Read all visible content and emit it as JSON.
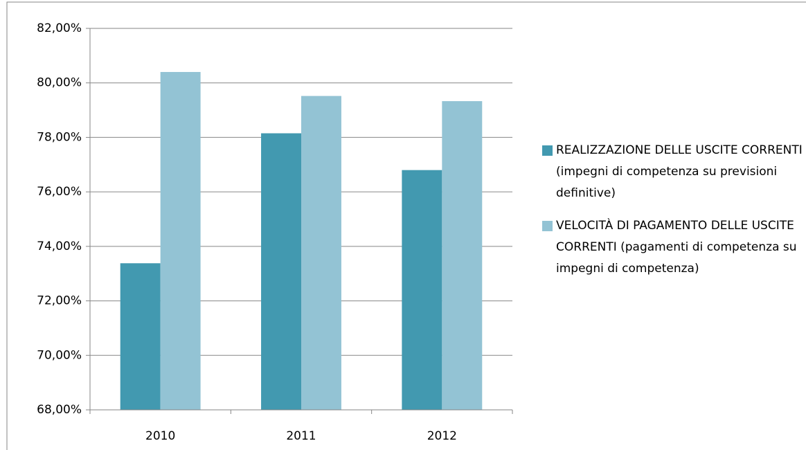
{
  "chart_data": {
    "type": "bar",
    "categories": [
      "2010",
      "2011",
      "2012"
    ],
    "series": [
      {
        "name": "REALIZZAZIONE DELLE USCITE CORRENTI\n (impegni di competenza su previsioni definitive)",
        "color": "#4299b0",
        "values": [
          73.38,
          78.15,
          76.8
        ]
      },
      {
        "name": "VELOCITÀ DI PAGAMENTO DELLE USCITE CORRENTI (pagamenti di competenza su impegni di competenza)",
        "color": "#93c3d4",
        "values": [
          80.4,
          79.52,
          79.33
        ]
      }
    ],
    "ylim": [
      68,
      82
    ],
    "yticks": [
      {
        "value": 68,
        "label": "68,00%"
      },
      {
        "value": 70,
        "label": "70,00%"
      },
      {
        "value": 72,
        "label": "72,00%"
      },
      {
        "value": 74,
        "label": "74,00%"
      },
      {
        "value": 76,
        "label": "76,00%"
      },
      {
        "value": 78,
        "label": "78,00%"
      },
      {
        "value": 80,
        "label": "80,00%"
      },
      {
        "value": 82,
        "label": "82,00%"
      }
    ],
    "grid": true,
    "legend": "right"
  }
}
